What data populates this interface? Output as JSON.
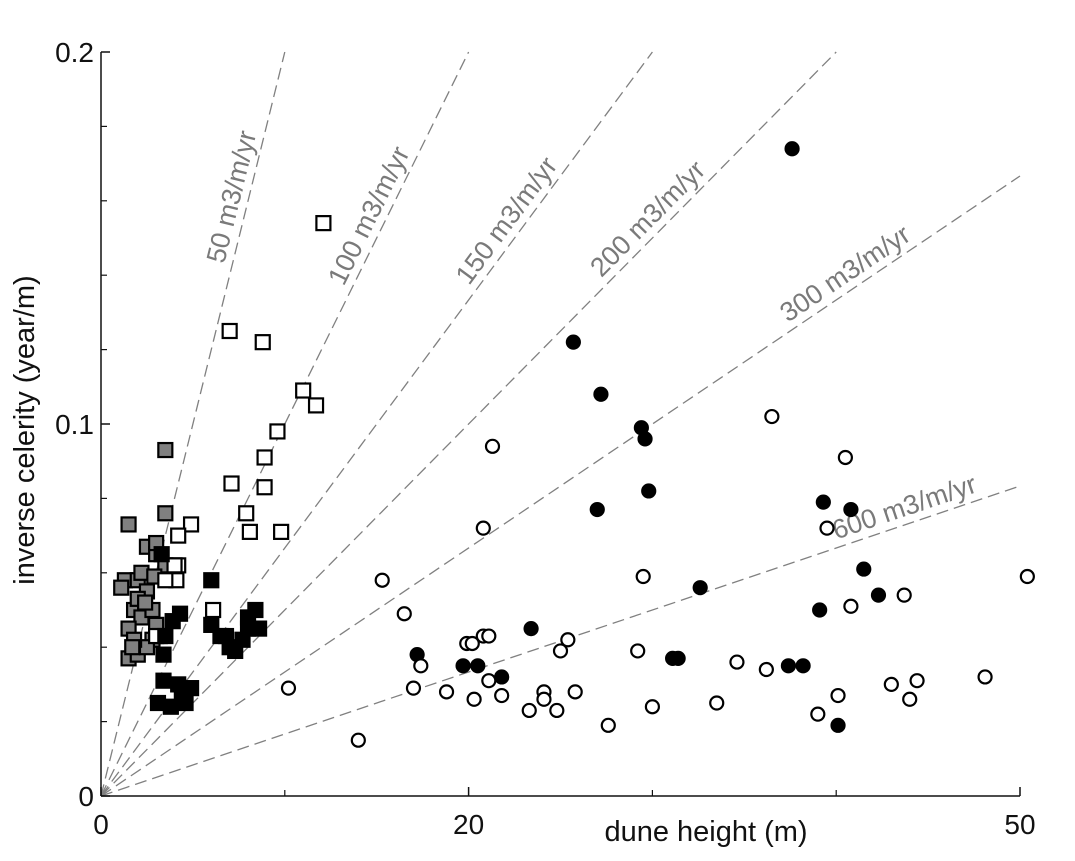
{
  "chart_data": {
    "type": "scatter",
    "xlabel": "dune height (m)",
    "ylabel": "inverse celerity (year/m)",
    "xlim": [
      0,
      50
    ],
    "ylim": [
      0,
      0.2
    ],
    "x_tick_labels": [
      {
        "value": 0,
        "label": "0"
      },
      {
        "value": 20,
        "label": "20"
      },
      {
        "value": 50,
        "label": "50"
      }
    ],
    "x_minor_ticks": [
      10,
      30,
      40
    ],
    "y_tick_labels": [
      {
        "value": 0,
        "label": "0"
      },
      {
        "value": 0.1,
        "label": "0.1"
      },
      {
        "value": 0.2,
        "label": "0.2"
      }
    ],
    "y_minor_ticks": [
      0.02,
      0.04,
      0.06,
      0.08,
      0.12,
      0.14,
      0.16,
      0.18
    ],
    "grid": false,
    "colors": {
      "gray_fill": "#808080",
      "line": "#808080",
      "label": "#7a7a7a",
      "marker": "#000000"
    },
    "reference_lines": [
      {
        "flux": 50,
        "label": "50 m3/m/yr",
        "x_end": 10.0
      },
      {
        "flux": 100,
        "label": "100 m3/m/yr",
        "x_end": 20.0
      },
      {
        "flux": 150,
        "label": "150 m3/m/yr",
        "x_end": 30.0
      },
      {
        "flux": 200,
        "label": "200 m3/m/yr",
        "x_end": 40.0
      },
      {
        "flux": 300,
        "label": "300 m3/m/yr",
        "x_end": 50.0
      },
      {
        "flux": 600,
        "label": "600 m3/m/yr",
        "x_end": 50.0
      }
    ],
    "series": [
      {
        "marker": "square",
        "fill": "gray",
        "points": [
          [
            1.5,
            0.073
          ],
          [
            3.5,
            0.093
          ],
          [
            3.5,
            0.076
          ],
          [
            1.3,
            0.058
          ],
          [
            1.1,
            0.056
          ],
          [
            2.0,
            0.058
          ],
          [
            2.5,
            0.067
          ],
          [
            2.2,
            0.06
          ],
          [
            3.0,
            0.065
          ],
          [
            1.8,
            0.05
          ],
          [
            2.5,
            0.055
          ],
          [
            2.2,
            0.048
          ],
          [
            1.5,
            0.045
          ],
          [
            2.8,
            0.042
          ],
          [
            1.5,
            0.037
          ],
          [
            2.0,
            0.038
          ],
          [
            2.5,
            0.04
          ],
          [
            3.0,
            0.046
          ],
          [
            3.2,
            0.043
          ],
          [
            2.8,
            0.05
          ],
          [
            1.8,
            0.042
          ],
          [
            2.0,
            0.053
          ],
          [
            3.5,
            0.062
          ],
          [
            3.0,
            0.068
          ],
          [
            2.4,
            0.052
          ],
          [
            1.7,
            0.04
          ],
          [
            2.9,
            0.059
          ]
        ]
      },
      {
        "marker": "square",
        "fill": "white",
        "points": [
          [
            12.1,
            0.154
          ],
          [
            7.0,
            0.125
          ],
          [
            8.8,
            0.122
          ],
          [
            11.0,
            0.109
          ],
          [
            11.7,
            0.105
          ],
          [
            9.6,
            0.098
          ],
          [
            8.9,
            0.091
          ],
          [
            7.1,
            0.084
          ],
          [
            8.9,
            0.083
          ],
          [
            7.9,
            0.076
          ],
          [
            8.1,
            0.071
          ],
          [
            9.8,
            0.071
          ],
          [
            4.9,
            0.073
          ],
          [
            4.2,
            0.07
          ],
          [
            4.2,
            0.062
          ],
          [
            4.1,
            0.058
          ],
          [
            3.5,
            0.058
          ],
          [
            6.1,
            0.05
          ],
          [
            3.0,
            0.043
          ],
          [
            4.0,
            0.062
          ]
        ]
      },
      {
        "marker": "square",
        "fill": "black",
        "points": [
          [
            6.0,
            0.058
          ],
          [
            4.3,
            0.049
          ],
          [
            8.4,
            0.05
          ],
          [
            8.0,
            0.048
          ],
          [
            8.6,
            0.045
          ],
          [
            6.8,
            0.043
          ],
          [
            7.7,
            0.042
          ],
          [
            7.0,
            0.04
          ],
          [
            7.3,
            0.039
          ],
          [
            6.0,
            0.046
          ],
          [
            3.9,
            0.047
          ],
          [
            3.4,
            0.038
          ],
          [
            3.5,
            0.043
          ],
          [
            3.4,
            0.031
          ],
          [
            4.2,
            0.03
          ],
          [
            4.9,
            0.029
          ],
          [
            4.4,
            0.026
          ],
          [
            3.1,
            0.025
          ],
          [
            3.8,
            0.024
          ],
          [
            4.6,
            0.025
          ],
          [
            3.3,
            0.065
          ],
          [
            8.0,
            0.045
          ],
          [
            6.5,
            0.043
          ]
        ]
      },
      {
        "marker": "circle",
        "fill": "black",
        "points": [
          [
            37.6,
            0.174
          ],
          [
            25.7,
            0.122
          ],
          [
            27.2,
            0.108
          ],
          [
            29.4,
            0.099
          ],
          [
            29.6,
            0.096
          ],
          [
            29.8,
            0.082
          ],
          [
            27.0,
            0.077
          ],
          [
            39.3,
            0.079
          ],
          [
            40.8,
            0.077
          ],
          [
            41.5,
            0.061
          ],
          [
            42.3,
            0.054
          ],
          [
            39.1,
            0.05
          ],
          [
            32.6,
            0.056
          ],
          [
            23.4,
            0.045
          ],
          [
            17.2,
            0.038
          ],
          [
            19.7,
            0.035
          ],
          [
            20.5,
            0.035
          ],
          [
            21.8,
            0.032
          ],
          [
            31.1,
            0.037
          ],
          [
            31.4,
            0.037
          ],
          [
            37.4,
            0.035
          ],
          [
            38.2,
            0.035
          ],
          [
            40.1,
            0.019
          ]
        ]
      },
      {
        "marker": "circle",
        "fill": "white",
        "points": [
          [
            36.5,
            0.102
          ],
          [
            20.8,
            0.072
          ],
          [
            21.3,
            0.094
          ],
          [
            15.3,
            0.058
          ],
          [
            16.5,
            0.049
          ],
          [
            10.2,
            0.029
          ],
          [
            14.0,
            0.015
          ],
          [
            17.4,
            0.035
          ],
          [
            17.0,
            0.029
          ],
          [
            18.8,
            0.028
          ],
          [
            19.9,
            0.041
          ],
          [
            20.2,
            0.041
          ],
          [
            20.8,
            0.043
          ],
          [
            21.1,
            0.043
          ],
          [
            21.1,
            0.031
          ],
          [
            20.3,
            0.026
          ],
          [
            21.8,
            0.027
          ],
          [
            23.3,
            0.023
          ],
          [
            24.1,
            0.028
          ],
          [
            24.1,
            0.026
          ],
          [
            24.8,
            0.023
          ],
          [
            25.0,
            0.039
          ],
          [
            25.4,
            0.042
          ],
          [
            25.8,
            0.028
          ],
          [
            27.6,
            0.019
          ],
          [
            29.2,
            0.039
          ],
          [
            29.5,
            0.059
          ],
          [
            30.0,
            0.024
          ],
          [
            33.5,
            0.025
          ],
          [
            34.6,
            0.036
          ],
          [
            36.2,
            0.034
          ],
          [
            39.0,
            0.022
          ],
          [
            39.5,
            0.072
          ],
          [
            40.1,
            0.027
          ],
          [
            40.5,
            0.091
          ],
          [
            40.8,
            0.051
          ],
          [
            43.0,
            0.03
          ],
          [
            43.7,
            0.054
          ],
          [
            44.0,
            0.026
          ],
          [
            44.4,
            0.031
          ],
          [
            48.1,
            0.032
          ],
          [
            50.4,
            0.059
          ]
        ]
      }
    ]
  }
}
